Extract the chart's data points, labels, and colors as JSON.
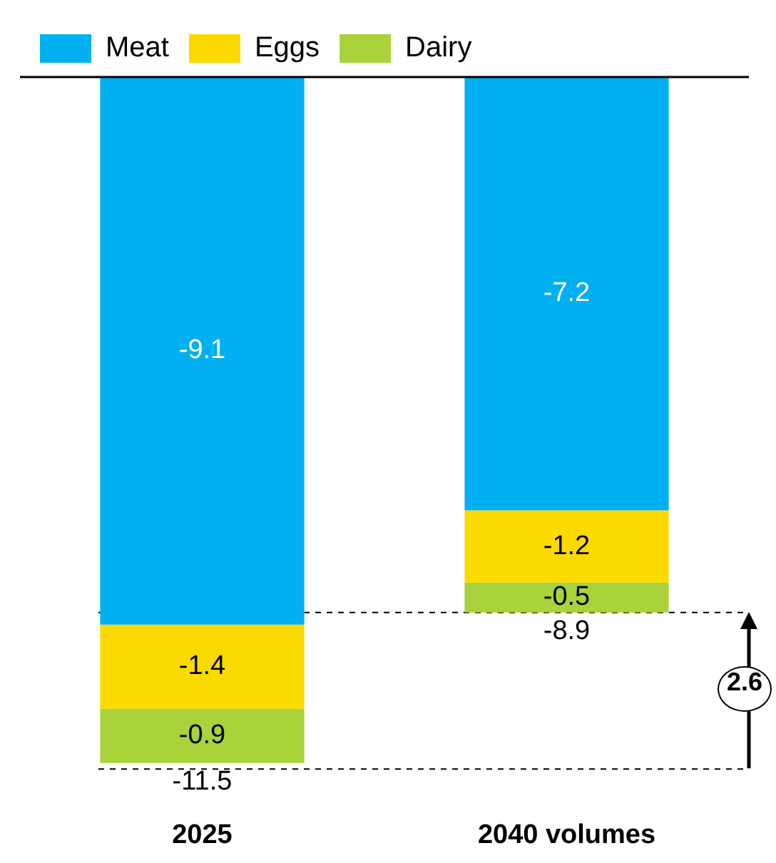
{
  "chart_data": {
    "type": "bar",
    "stacked": true,
    "categories": [
      "2025",
      "2040 volumes"
    ],
    "series": [
      {
        "name": "Meat",
        "color": "#00b0f0",
        "values": [
          -9.1,
          -7.2
        ]
      },
      {
        "name": "Eggs",
        "color": "#fada00",
        "values": [
          -1.4,
          -1.2
        ]
      },
      {
        "name": "Dairy",
        "color": "#a9d23b",
        "values": [
          -0.9,
          -0.5
        ]
      }
    ],
    "tick_labels": "x",
    "grid": false,
    "legend": "top left",
    "data_labels": true,
    "totals": [
      "-11.5",
      "-8.9"
    ],
    "ref_lines": [
      {
        "axis": "y",
        "value": -11.5,
        "line_style": "dashed",
        "color": "#000000"
      },
      {
        "axis": "y",
        "value": -8.9,
        "line_style": "dashed",
        "color": "#000000"
      }
    ],
    "annotations": [
      "2.6"
    ]
  }
}
